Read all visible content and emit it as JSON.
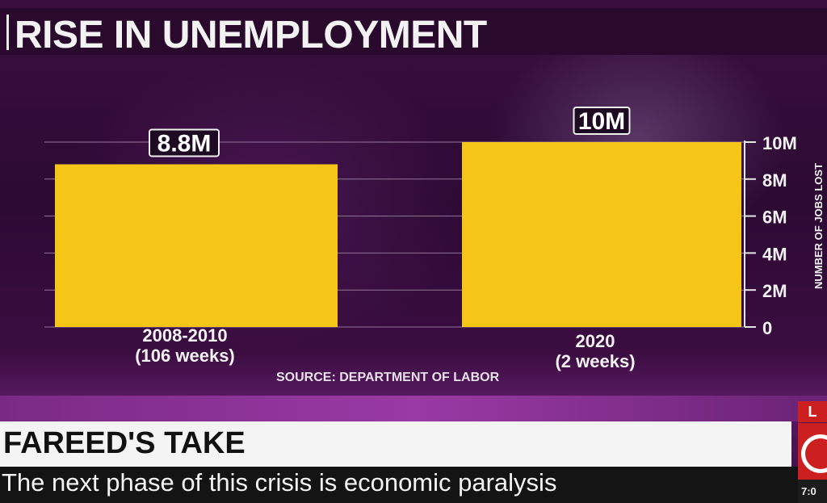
{
  "header": {
    "title": "RISE IN UNEMPLOYMENT"
  },
  "chart_data": {
    "type": "bar",
    "categories": [
      {
        "line1": "2008-2010",
        "line2": "(106 weeks)"
      },
      {
        "line1": "2020",
        "line2": "(2 weeks)"
      }
    ],
    "values": [
      8.8,
      10
    ],
    "data_labels": [
      "8.8M",
      "10M"
    ],
    "ylabel": "NUMBER OF JOBS LOST",
    "ylim": [
      0,
      10
    ],
    "yticks": [
      {
        "value": 0,
        "label": "0"
      },
      {
        "value": 2,
        "label": "2M"
      },
      {
        "value": 4,
        "label": "4M"
      },
      {
        "value": 6,
        "label": "6M"
      },
      {
        "value": 8,
        "label": "8M"
      },
      {
        "value": 10,
        "label": "10M"
      }
    ],
    "grid": true,
    "y_axis_position": "right",
    "bar_color": "#f5c518"
  },
  "source": "SOURCE: DEPARTMENT OF LABOR",
  "lower_third": {
    "show": "FAREED'S TAKE",
    "headline": "The next phase of this crisis is economic paralysis",
    "live_badge": "L",
    "logo_icon": "network-logo-icon",
    "clock": "7:0"
  },
  "colors": {
    "bar": "#f5c518",
    "background": "#3a0f3f",
    "badge": "#cc1f1f"
  }
}
